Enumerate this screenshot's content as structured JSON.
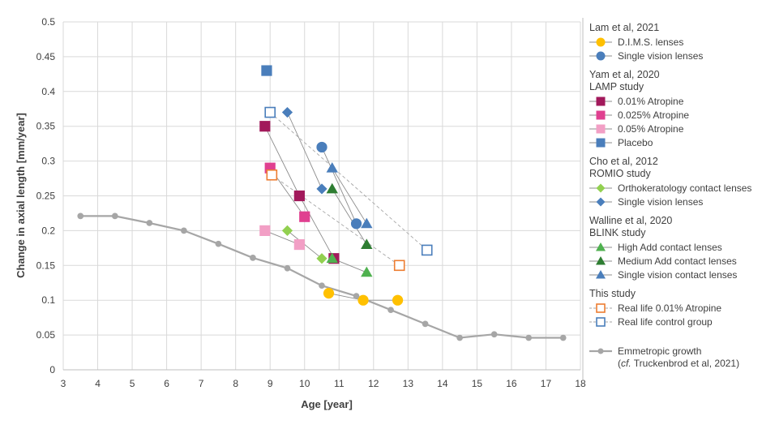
{
  "chart_data": {
    "type": "scatter",
    "xlabel": "Age [year]",
    "ylabel": "Change in axial length [mm/year]",
    "xlim": [
      3,
      18
    ],
    "ylim": [
      0,
      0.5
    ],
    "x_ticks": [
      3,
      4,
      5,
      6,
      7,
      8,
      9,
      10,
      11,
      12,
      13,
      14,
      15,
      16,
      17,
      18
    ],
    "y_ticks": [
      0,
      0.05,
      0.1,
      0.15,
      0.2,
      0.25,
      0.3,
      0.35,
      0.4,
      0.45,
      0.5
    ],
    "y_tick_labels": [
      "0",
      "0.05",
      "0.1",
      "0.15",
      "0.2",
      "0.25",
      "0.3",
      "0.35",
      "0.4",
      "0.45",
      "0.5"
    ],
    "grid": true,
    "legend_position": "right",
    "groups": [
      {
        "lines": [
          "Lam et al, 2021"
        ],
        "series": [
          {
            "name": "D.I.M.S. lenses",
            "marker": "circle",
            "color": "#ffc000",
            "filled": true,
            "connect": "solid",
            "points": [
              [
                10.7,
                0.11
              ],
              [
                11.7,
                0.1
              ],
              [
                12.7,
                0.1
              ]
            ]
          },
          {
            "name": "Single vision lenses",
            "marker": "circle",
            "color": "#4a7ebb",
            "filled": true,
            "connect": "solid",
            "points": [
              [
                10.5,
                0.32
              ],
              [
                11.5,
                0.21
              ]
            ]
          }
        ]
      },
      {
        "lines": [
          "Yam et al, 2020",
          "LAMP study"
        ],
        "series": [
          {
            "name": "0.01% Atropine",
            "marker": "square",
            "color": "#a2195b",
            "filled": true,
            "connect": "solid",
            "points": [
              [
                8.85,
                0.35
              ],
              [
                9.85,
                0.25
              ],
              [
                10.85,
                0.16
              ]
            ]
          },
          {
            "name": "0.025% Atropine",
            "marker": "square",
            "color": "#e04090",
            "filled": true,
            "connect": "solid",
            "points": [
              [
                9.0,
                0.29
              ],
              [
                10.0,
                0.22
              ]
            ]
          },
          {
            "name": "0.05% Atropine",
            "marker": "square",
            "color": "#f29fc5",
            "filled": true,
            "connect": "solid",
            "points": [
              [
                8.85,
                0.2
              ],
              [
                9.85,
                0.18
              ]
            ]
          },
          {
            "name": "Placebo",
            "marker": "square",
            "color": "#4a7ebb",
            "filled": true,
            "connect": "none",
            "points": [
              [
                8.9,
                0.43
              ]
            ]
          }
        ]
      },
      {
        "lines": [
          "Cho et al, 2012",
          "ROMIO study"
        ],
        "series": [
          {
            "name": "Orthokeratology contact lenses",
            "marker": "diamond",
            "color": "#92d050",
            "filled": true,
            "connect": "solid",
            "points": [
              [
                9.5,
                0.2
              ],
              [
                10.5,
                0.16
              ]
            ]
          },
          {
            "name": "Single vision lenses",
            "marker": "diamond",
            "color": "#4a7ebb",
            "filled": true,
            "connect": "solid",
            "points": [
              [
                9.5,
                0.37
              ],
              [
                10.5,
                0.26
              ]
            ]
          }
        ]
      },
      {
        "lines": [
          "Walline et al, 2020",
          "BLINK study"
        ],
        "series": [
          {
            "name": "High Add contact lenses",
            "marker": "triangle",
            "color": "#4fb14f",
            "filled": true,
            "connect": "solid",
            "points": [
              [
                10.8,
                0.16
              ],
              [
                11.8,
                0.14
              ]
            ]
          },
          {
            "name": "Medium Add contact lenses",
            "marker": "triangle",
            "color": "#2e7d32",
            "filled": true,
            "connect": "solid",
            "points": [
              [
                10.8,
                0.26
              ],
              [
                11.8,
                0.18
              ]
            ]
          },
          {
            "name": "Single vision contact lenses",
            "marker": "triangle",
            "color": "#4a7ebb",
            "filled": true,
            "connect": "solid",
            "points": [
              [
                10.8,
                0.29
              ],
              [
                11.8,
                0.21
              ]
            ]
          }
        ]
      },
      {
        "lines": [
          "This study"
        ],
        "series": [
          {
            "name": "Real life 0.01% Atropine",
            "marker": "square",
            "color": "#ed7d31",
            "filled": false,
            "connect": "dashed",
            "points": [
              [
                9.05,
                0.28
              ],
              [
                12.75,
                0.15
              ]
            ]
          },
          {
            "name": "Real life control group",
            "marker": "square",
            "color": "#4a7ebb",
            "filled": false,
            "connect": "dashed",
            "points": [
              [
                9.0,
                0.37
              ],
              [
                13.55,
                0.172
              ]
            ]
          }
        ]
      },
      {
        "lines": [],
        "series": [
          {
            "name": "Emmetropic growth",
            "name_sub": "cf.",
            "name_tail": " Truckenbrod et al, 2021)",
            "marker": "circle-small",
            "color": "#a6a6a6",
            "filled": true,
            "connect": "thick",
            "points": [
              [
                3.5,
                0.221
              ],
              [
                4.5,
                0.221
              ],
              [
                5.5,
                0.211
              ],
              [
                6.5,
                0.2
              ],
              [
                7.5,
                0.181
              ],
              [
                8.5,
                0.161
              ],
              [
                9.5,
                0.146
              ],
              [
                10.5,
                0.121
              ],
              [
                11.5,
                0.106
              ],
              [
                12.5,
                0.086
              ],
              [
                13.5,
                0.066
              ],
              [
                14.5,
                0.046
              ],
              [
                15.5,
                0.051
              ],
              [
                16.5,
                0.046
              ],
              [
                17.5,
                0.046
              ]
            ]
          }
        ]
      }
    ]
  }
}
